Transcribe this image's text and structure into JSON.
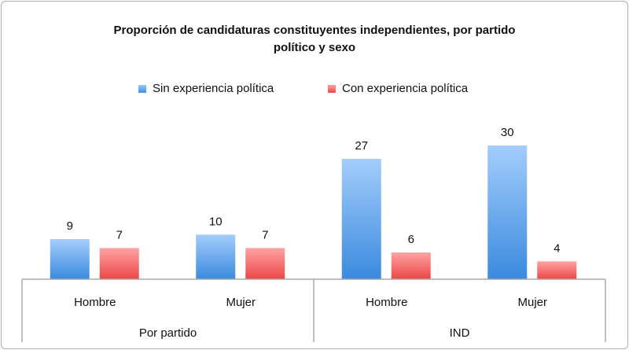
{
  "chart_data": {
    "type": "bar",
    "title": "Proporción de candidaturas constituyentes independientes, por partido político y sexo",
    "title_lines": [
      "Proporción de candidaturas constituyentes independientes, por partido",
      "político y sexo"
    ],
    "categories": [
      "Hombre",
      "Mujer",
      "Hombre",
      "Mujer"
    ],
    "groups": [
      {
        "label": "Por partido",
        "span": 2
      },
      {
        "label": "IND",
        "span": 2
      }
    ],
    "series": [
      {
        "name": "Sin experiencia política",
        "color": "#4a94e0",
        "values": [
          9,
          10,
          27,
          30
        ]
      },
      {
        "name": "Con experiencia política",
        "color": "#f05a5a",
        "values": [
          7,
          7,
          6,
          4
        ]
      }
    ],
    "ylim": [
      0,
      30
    ],
    "xlabel": "",
    "ylabel": "",
    "grid": false,
    "legend_position": "top"
  }
}
